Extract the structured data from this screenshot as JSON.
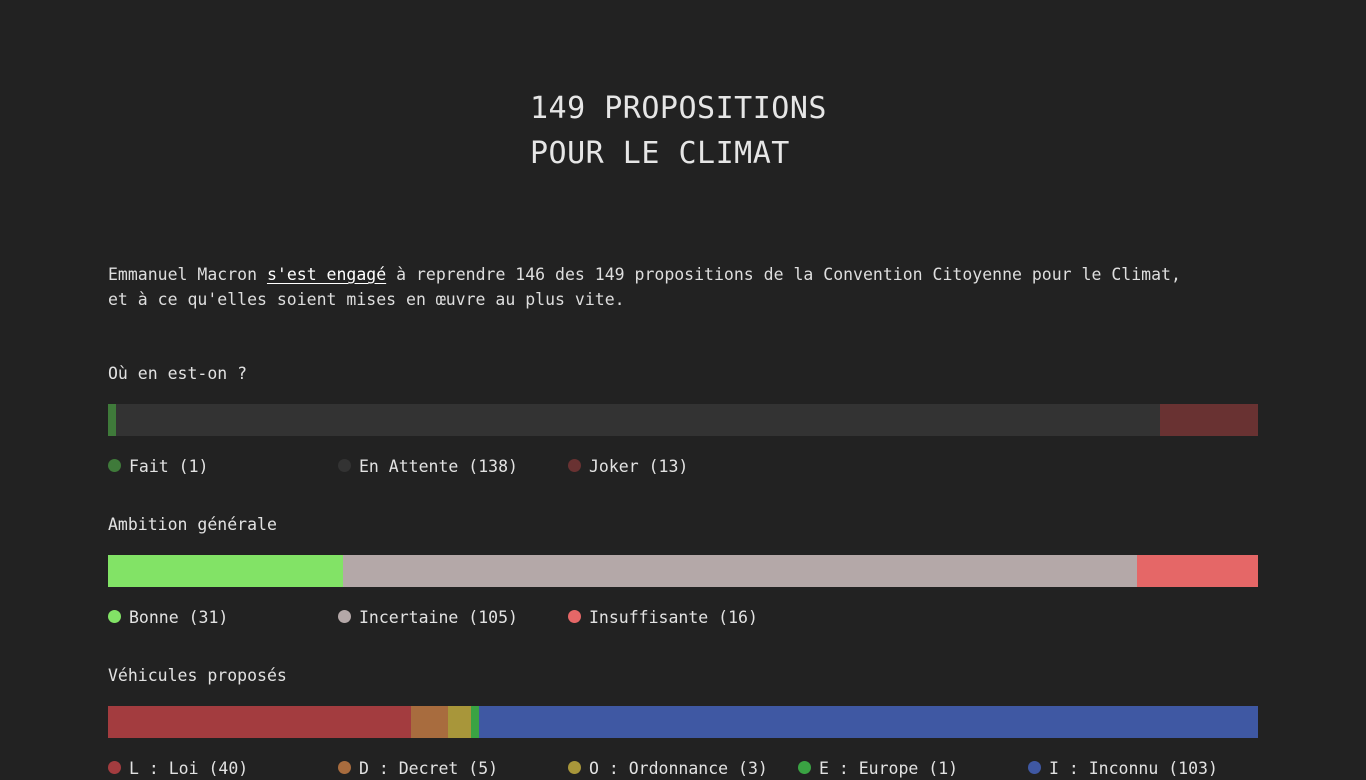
{
  "title": {
    "line1": "149 PROPOSITIONS",
    "line2": "POUR LE CLIMAT"
  },
  "intro": {
    "part1": "Emmanuel Macron ",
    "link": "s'est engagé",
    "part2": " à reprendre 146 des 149 propositions de la Convention Citoyenne pour le Climat,",
    "line2": "et à ce qu'elles soient mises en œuvre au plus vite."
  },
  "sections": [
    {
      "heading": "Où en est-on ?",
      "segments": [
        {
          "label": "Fait",
          "count": 1,
          "color": "#3f7a3a"
        },
        {
          "label": "En Attente",
          "count": 138,
          "color": "#333333"
        },
        {
          "label": "Joker",
          "count": 13,
          "color": "#693232"
        }
      ],
      "legend": [
        "Fait (1)",
        "En Attente (138)",
        "Joker (13)"
      ],
      "legend_dot_colors": [
        "#3f7a3a",
        "#333333",
        "#693232"
      ]
    },
    {
      "heading": "Ambition générale",
      "segments": [
        {
          "label": "Bonne",
          "count": 31,
          "color": "#82e366"
        },
        {
          "label": "Incertaine",
          "count": 105,
          "color": "#b4a8a8"
        },
        {
          "label": "Insuffisante",
          "count": 16,
          "color": "#e56767"
        }
      ],
      "legend": [
        "Bonne (31)",
        "Incertaine (105)",
        "Insuffisante (16)"
      ],
      "legend_dot_colors": [
        "#82e366",
        "#b4a8a8",
        "#e56767"
      ]
    },
    {
      "heading": "Véhicules proposés",
      "segments": [
        {
          "label": "L : Loi",
          "count": 40,
          "color": "#a33c3f"
        },
        {
          "label": "D : Decret",
          "count": 5,
          "color": "#a86c3e"
        },
        {
          "label": "O : Ordonnance",
          "count": 3,
          "color": "#a8963a"
        },
        {
          "label": "E : Europe",
          "count": 1,
          "color": "#3aa343"
        },
        {
          "label": "I : Inconnu",
          "count": 103,
          "color": "#3f58a3"
        }
      ],
      "legend": [
        "L : Loi (40)",
        "D : Decret (5)",
        "O : Ordonnance (3)",
        "E : Europe (1)",
        "I : Inconnu (103)"
      ],
      "legend_dot_colors": [
        "#a33c3f",
        "#a86c3e",
        "#a8963a",
        "#3aa343",
        "#3f58a3"
      ]
    }
  ]
}
